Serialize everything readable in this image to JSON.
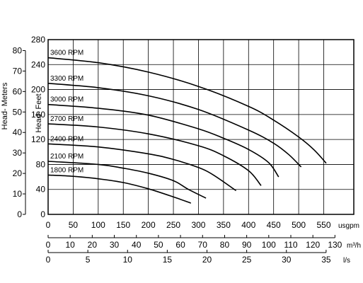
{
  "chart_data": {
    "type": "line",
    "xlabel": "usgpm",
    "ylabel": "Head- Feet",
    "ylabel_secondary": "Head- Meters",
    "xlim": [
      0,
      610
    ],
    "ylim": [
      0,
      280
    ],
    "x_ticks": [
      0,
      50,
      100,
      150,
      200,
      250,
      300,
      350,
      400,
      450,
      500,
      550
    ],
    "y_ticks": [
      0,
      40,
      80,
      120,
      160,
      200,
      240,
      280
    ],
    "meters_axis": {
      "label": "Head- Meters",
      "ticks": [
        0,
        10,
        20,
        30,
        40,
        50,
        60,
        70,
        80
      ]
    },
    "m3h_axis": {
      "unit": "m³/h",
      "ticks": [
        0,
        10,
        20,
        30,
        40,
        50,
        60,
        70,
        80,
        90,
        100,
        110,
        120,
        130
      ]
    },
    "ls_axis": {
      "unit": "l/s",
      "ticks": [
        0,
        5,
        10,
        15,
        20,
        25,
        30,
        35
      ]
    },
    "grid": true,
    "series": [
      {
        "name": "3600 RPM",
        "x": [
          0,
          100,
          200,
          300,
          400,
          450,
          500,
          530,
          555
        ],
        "y": [
          251,
          243,
          228,
          205,
          173,
          151,
          124,
          104,
          82
        ]
      },
      {
        "name": "3300 RPM",
        "x": [
          0,
          100,
          200,
          300,
          400,
          450,
          480,
          505
        ],
        "y": [
          210,
          203,
          190,
          168,
          135,
          114,
          96,
          76
        ]
      },
      {
        "name": "3000 RPM",
        "x": [
          0,
          100,
          200,
          300,
          350,
          400,
          440,
          460
        ],
        "y": [
          176,
          170,
          159,
          137,
          122,
          104,
          83,
          60
        ]
      },
      {
        "name": "2700 RPM",
        "x": [
          0,
          100,
          200,
          300,
          350,
          400,
          425
        ],
        "y": [
          145,
          140,
          129,
          110,
          94,
          70,
          46
        ]
      },
      {
        "name": "2400 RPM",
        "x": [
          0,
          100,
          200,
          250,
          300,
          330,
          375
        ],
        "y": [
          113,
          108,
          97,
          88,
          75,
          63,
          38
        ]
      },
      {
        "name": "2100 RPM",
        "x": [
          0,
          100,
          150,
          200,
          250,
          280,
          315
        ],
        "y": [
          85,
          80,
          74,
          66,
          54,
          40,
          26
        ]
      },
      {
        "name": "1800 RPM",
        "x": [
          0,
          50,
          100,
          150,
          200,
          250,
          285
        ],
        "y": [
          63,
          61,
          57,
          51,
          41,
          28,
          18
        ]
      }
    ]
  }
}
